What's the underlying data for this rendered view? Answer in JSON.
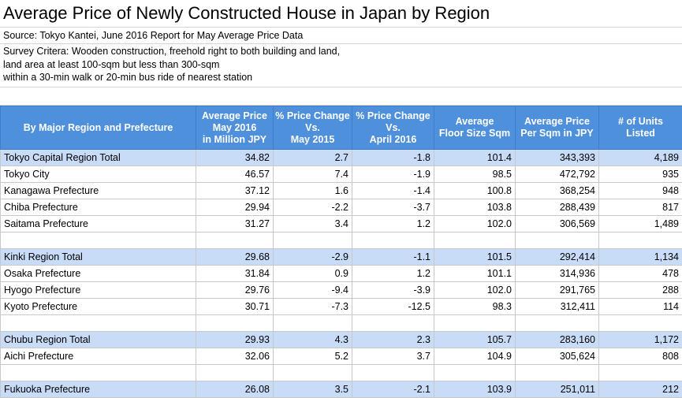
{
  "title": "Average Price of Newly Constructed House in Japan by Region",
  "source": "Source: Tokyo Kantei, June 2016 Report for May Average Price Data",
  "survey": [
    "Survey Critera: Wooden construction, freehold right to both building and land,",
    "land area at least 100-sqm but less than 300-sqm",
    "within a 30-min walk or 20-min bus ride of nearest station"
  ],
  "columns": [
    [
      "By Major Region and Prefecture"
    ],
    [
      "Average Price",
      "May 2016",
      "in Million JPY"
    ],
    [
      "% Price Change",
      "Vs.",
      "May 2015"
    ],
    [
      "% Price Change",
      "Vs.",
      "April 2016"
    ],
    [
      "Average",
      "Floor Size Sqm"
    ],
    [
      "Average Price",
      "Per Sqm in JPY"
    ],
    [
      "# of Units",
      "Listed"
    ]
  ],
  "rows": [
    {
      "name": "Tokyo Capital Region Total",
      "total": true,
      "cells": [
        "34.82",
        "2.7",
        "-1.8",
        "101.4",
        "343,393",
        "4,189"
      ]
    },
    {
      "name": "Tokyo City",
      "cells": [
        "46.57",
        "7.4",
        "-1.9",
        "98.5",
        "472,792",
        "935"
      ]
    },
    {
      "name": "Kanagawa Prefecture",
      "cells": [
        "37.12",
        "1.6",
        "-1.4",
        "100.8",
        "368,254",
        "948"
      ]
    },
    {
      "name": "Chiba Prefecture",
      "cells": [
        "29.94",
        "-2.2",
        "-3.7",
        "103.8",
        "288,439",
        "817"
      ]
    },
    {
      "name": "Saitama Prefecture",
      "cells": [
        "31.27",
        "3.4",
        "1.2",
        "102.0",
        "306,569",
        "1,489"
      ]
    },
    {
      "spacer": true
    },
    {
      "name": "Kinki Region Total",
      "total": true,
      "cells": [
        "29.68",
        "-2.9",
        "-1.1",
        "101.5",
        "292,414",
        "1,134"
      ]
    },
    {
      "name": "Osaka Prefecture",
      "cells": [
        "31.84",
        "0.9",
        "1.2",
        "101.1",
        "314,936",
        "478"
      ]
    },
    {
      "name": "Hyogo Prefecture",
      "cells": [
        "29.76",
        "-9.4",
        "-3.9",
        "102.0",
        "291,765",
        "288"
      ]
    },
    {
      "name": "Kyoto Prefecture",
      "cells": [
        "30.71",
        "-7.3",
        "-12.5",
        "98.3",
        "312,411",
        "114"
      ]
    },
    {
      "spacer": true
    },
    {
      "name": "Chubu Region Total",
      "total": true,
      "cells": [
        "29.93",
        "4.3",
        "2.3",
        "105.7",
        "283,160",
        "1,172"
      ]
    },
    {
      "name": "Aichi Prefecture",
      "cells": [
        "32.06",
        "5.2",
        "3.7",
        "104.9",
        "305,624",
        "808"
      ]
    },
    {
      "spacer": true
    },
    {
      "name": "Fukuoka Prefecture",
      "total": true,
      "cells": [
        "26.08",
        "3.5",
        "-2.1",
        "103.9",
        "251,011",
        "212"
      ]
    }
  ]
}
